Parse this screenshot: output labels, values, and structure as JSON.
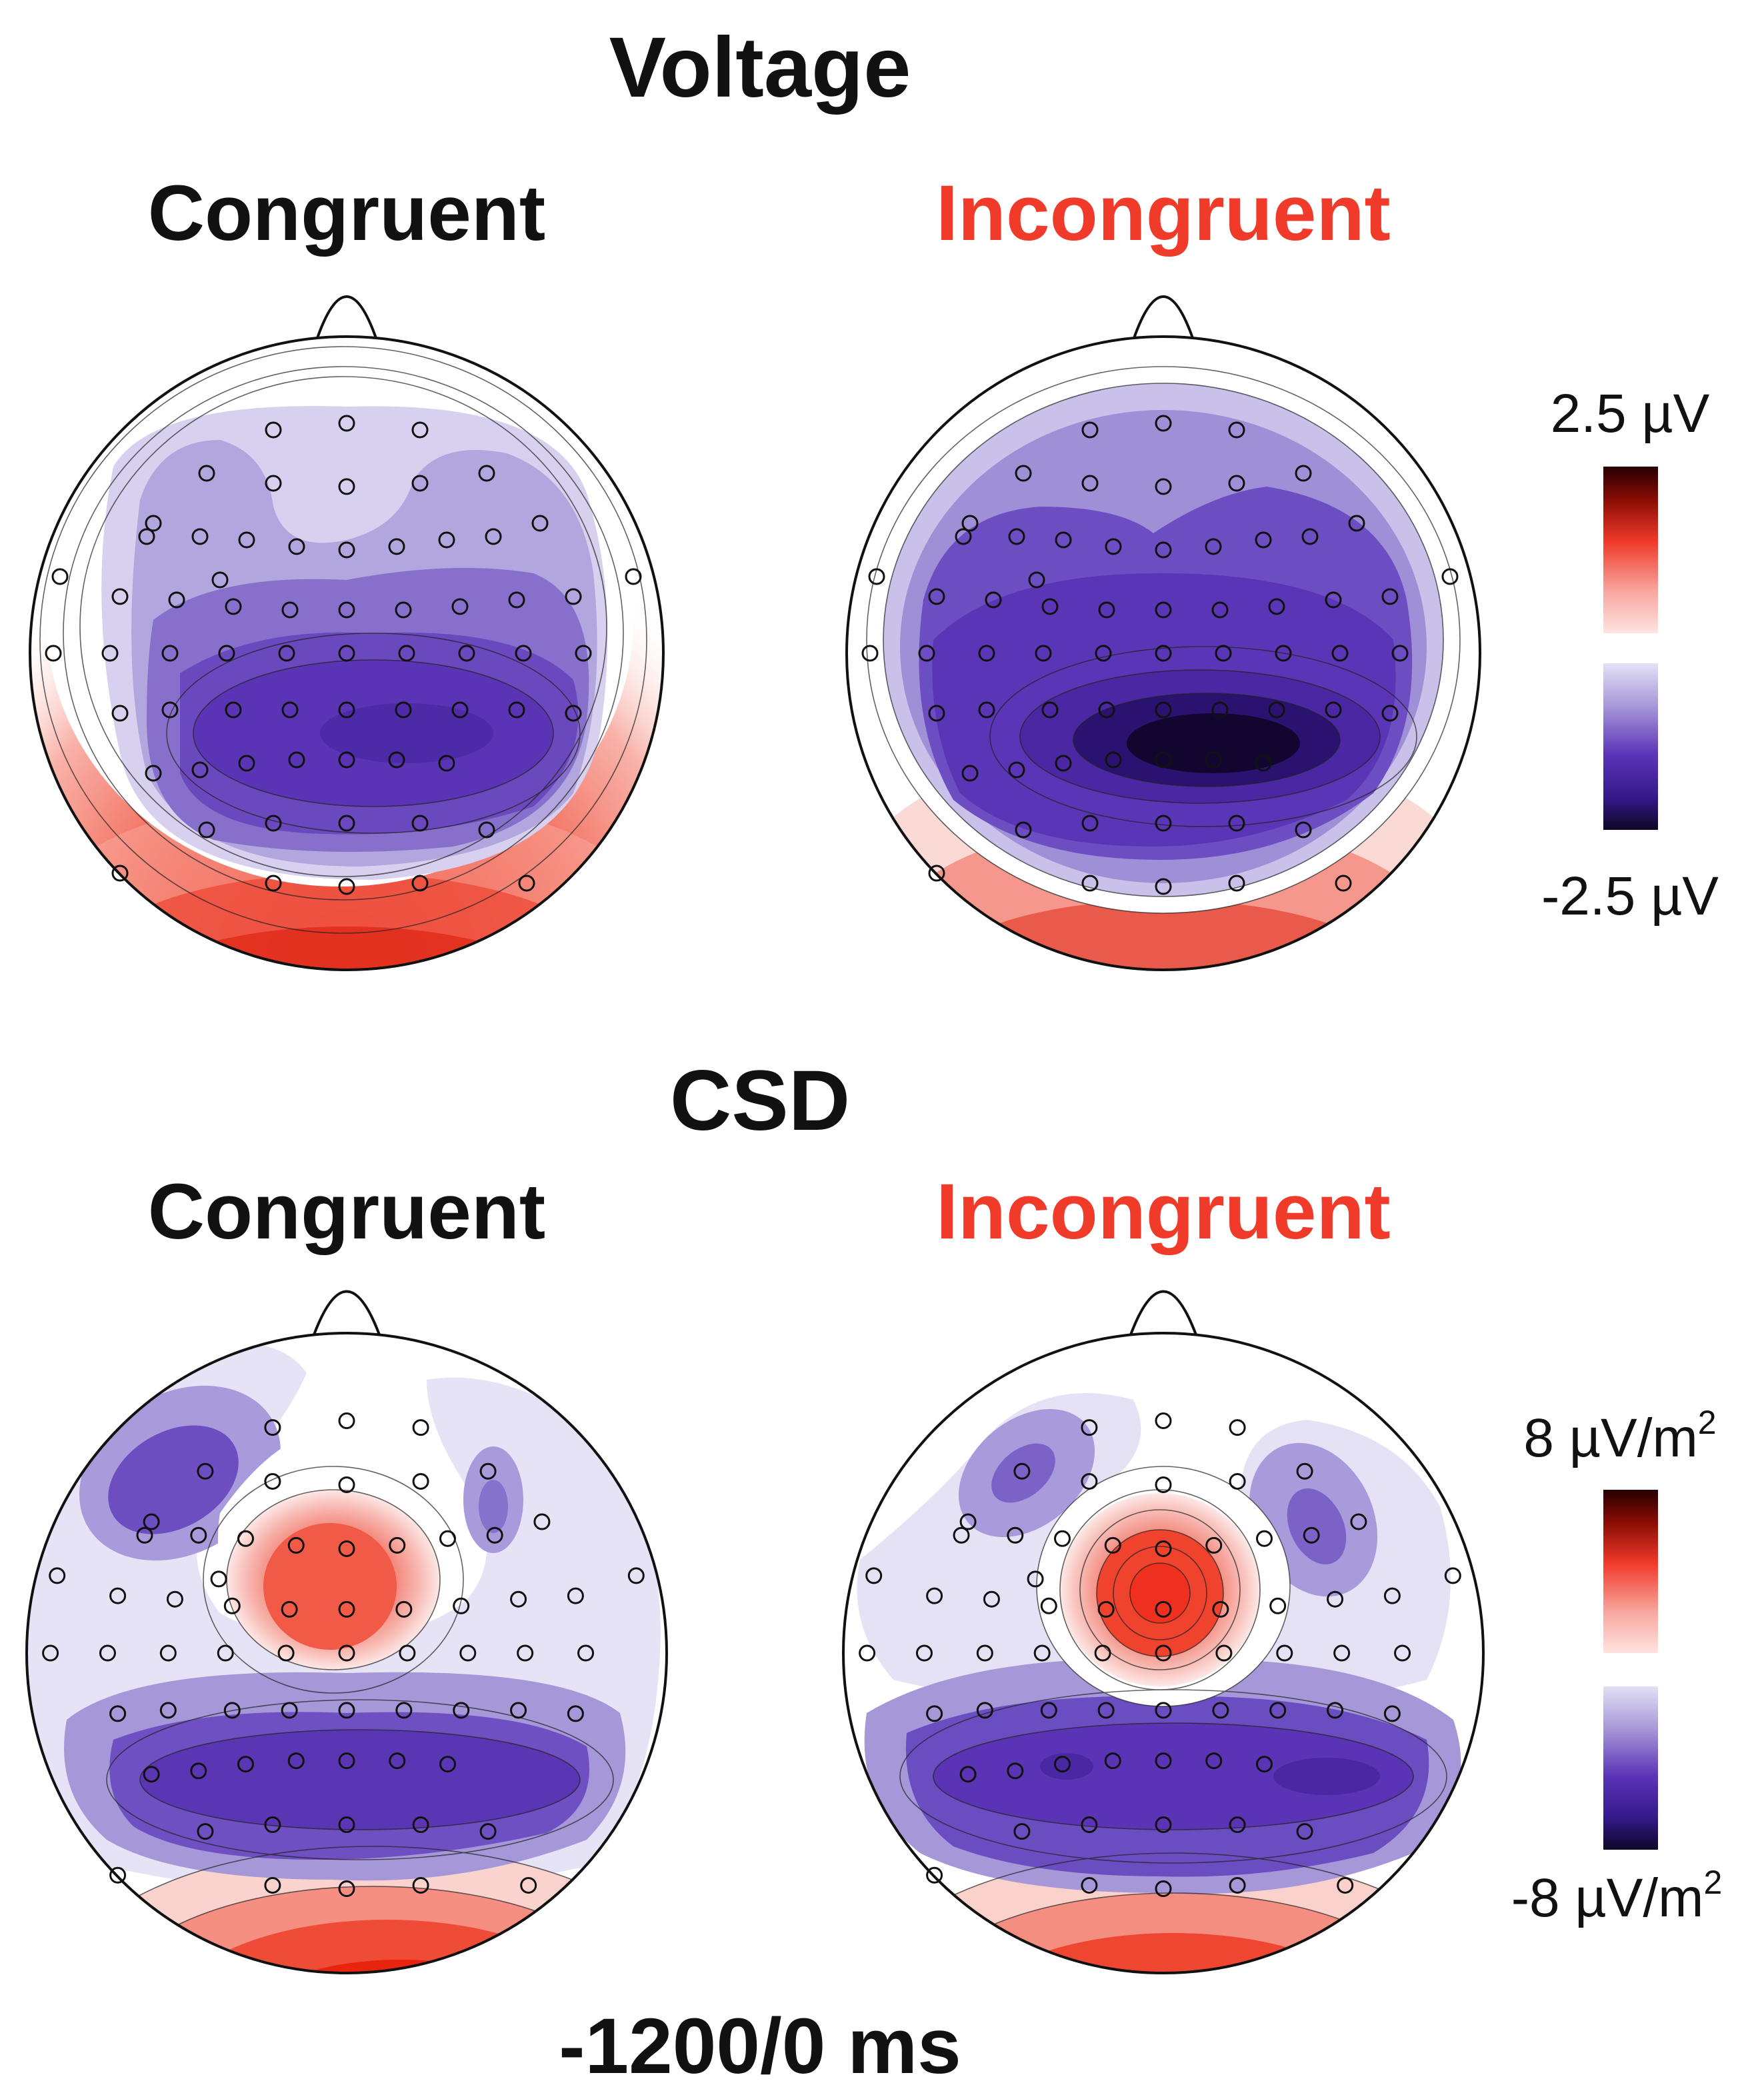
{
  "figure": {
    "voltage_title": "Voltage",
    "csd_title": "CSD",
    "time_window": "-1200/0 ms",
    "colors": {
      "congruent": "#111111",
      "incongruent": "#f03a2a",
      "positive_max": "#3a0000",
      "positive_mid": "#f03a2a",
      "negative_mid": "#5a2bb0",
      "negative_max": "#140832",
      "neutral": "#ffffff"
    },
    "voltage": {
      "congruent_label": "Congruent",
      "incongruent_label": "Incongruent",
      "scale_max": "2.5 µV",
      "scale_min": "-2.5 µV"
    },
    "csd": {
      "congruent_label": "Congruent",
      "incongruent_label": "Incongruent",
      "scale_max": "8 µV/m",
      "scale_max_exp": "2",
      "scale_min": "-8 µV/m",
      "scale_min_exp": "2"
    }
  }
}
